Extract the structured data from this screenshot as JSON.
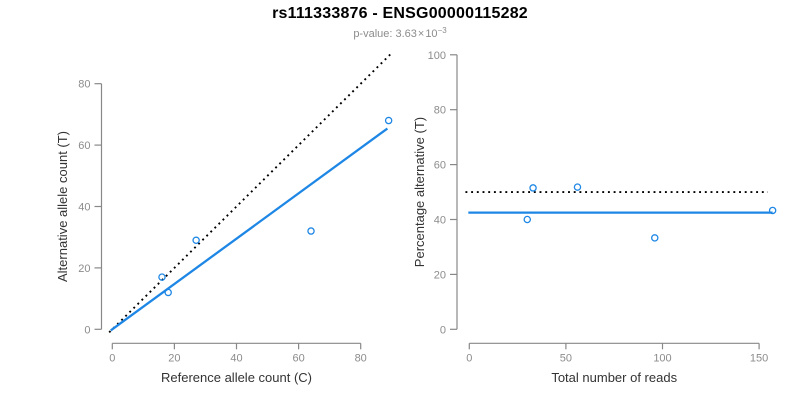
{
  "title": "rs111333876 - ENSG00000115282",
  "subtitle": {
    "label": "p-value:",
    "mantissa": "3.63",
    "times_sign": "×",
    "base": "10",
    "exponent": "−3"
  },
  "colors": {
    "background": "#ffffff",
    "title": "#000000",
    "subtitle": "#8c8c8c",
    "axis_line": "#888888",
    "tick_label": "#8c8c8c",
    "axis_label": "#333333",
    "point_stroke": "#1e87e5",
    "fit_line": "#1e87e5",
    "expected_line": "#000000"
  },
  "chart_data": [
    {
      "name": "allele-count-scatter",
      "type": "scatter",
      "title": "",
      "xlabel": "Reference allele count (C)",
      "ylabel": "Alternative allele count (T)",
      "xticks": [
        0,
        20,
        40,
        60,
        80
      ],
      "yticks": [
        0,
        20,
        40,
        60,
        80
      ],
      "xlim": [
        -3.5,
        91.5
      ],
      "ylim": [
        -3.5,
        91.5
      ],
      "grid": false,
      "legend": "none",
      "points": [
        {
          "x": 16,
          "y": 17
        },
        {
          "x": 18,
          "y": 12
        },
        {
          "x": 27,
          "y": 29
        },
        {
          "x": 64,
          "y": 32
        },
        {
          "x": 89,
          "y": 68
        }
      ],
      "lines": [
        {
          "name": "identity-line",
          "style": "dotted",
          "color": "#000000",
          "x1": -1,
          "y1": -1,
          "x2": 90.2,
          "y2": 90.2,
          "meaning": "expected 1:1 allele ratio"
        },
        {
          "name": "fit-line",
          "style": "solid",
          "color": "#1e87e5",
          "x1": -0.5,
          "y1": -0.37,
          "x2": 88.6,
          "y2": 65.4,
          "slope": 0.738,
          "intercept": 0,
          "meaning": "observed alt/ref ratio"
        }
      ]
    },
    {
      "name": "percentage-scatter",
      "type": "scatter",
      "title": "",
      "xlabel": "Total number of reads",
      "ylabel": "Percentage alternative (T)",
      "xticks": [
        0,
        50,
        100,
        150
      ],
      "yticks": [
        0,
        20,
        40,
        60,
        80,
        100
      ],
      "xlim": [
        -6.5,
        163.5
      ],
      "ylim": [
        0,
        100
      ],
      "grid": false,
      "legend": "none",
      "points": [
        {
          "x": 30,
          "y": 40.0
        },
        {
          "x": 33,
          "y": 51.5
        },
        {
          "x": 56,
          "y": 51.8
        },
        {
          "x": 96,
          "y": 33.3
        },
        {
          "x": 157,
          "y": 43.3
        }
      ],
      "lines": [
        {
          "name": "expected-percentage-line",
          "style": "dotted",
          "color": "#000000",
          "x1": -2,
          "y1": 50,
          "x2": 154.5,
          "y2": 50,
          "meaning": "expected 50% alternative"
        },
        {
          "name": "observed-percentage-line",
          "style": "solid",
          "color": "#1e87e5",
          "x1": -0.5,
          "y1": 42.5,
          "x2": 157,
          "y2": 42.5,
          "meaning": "observed mean percentage alternative"
        }
      ]
    }
  ]
}
